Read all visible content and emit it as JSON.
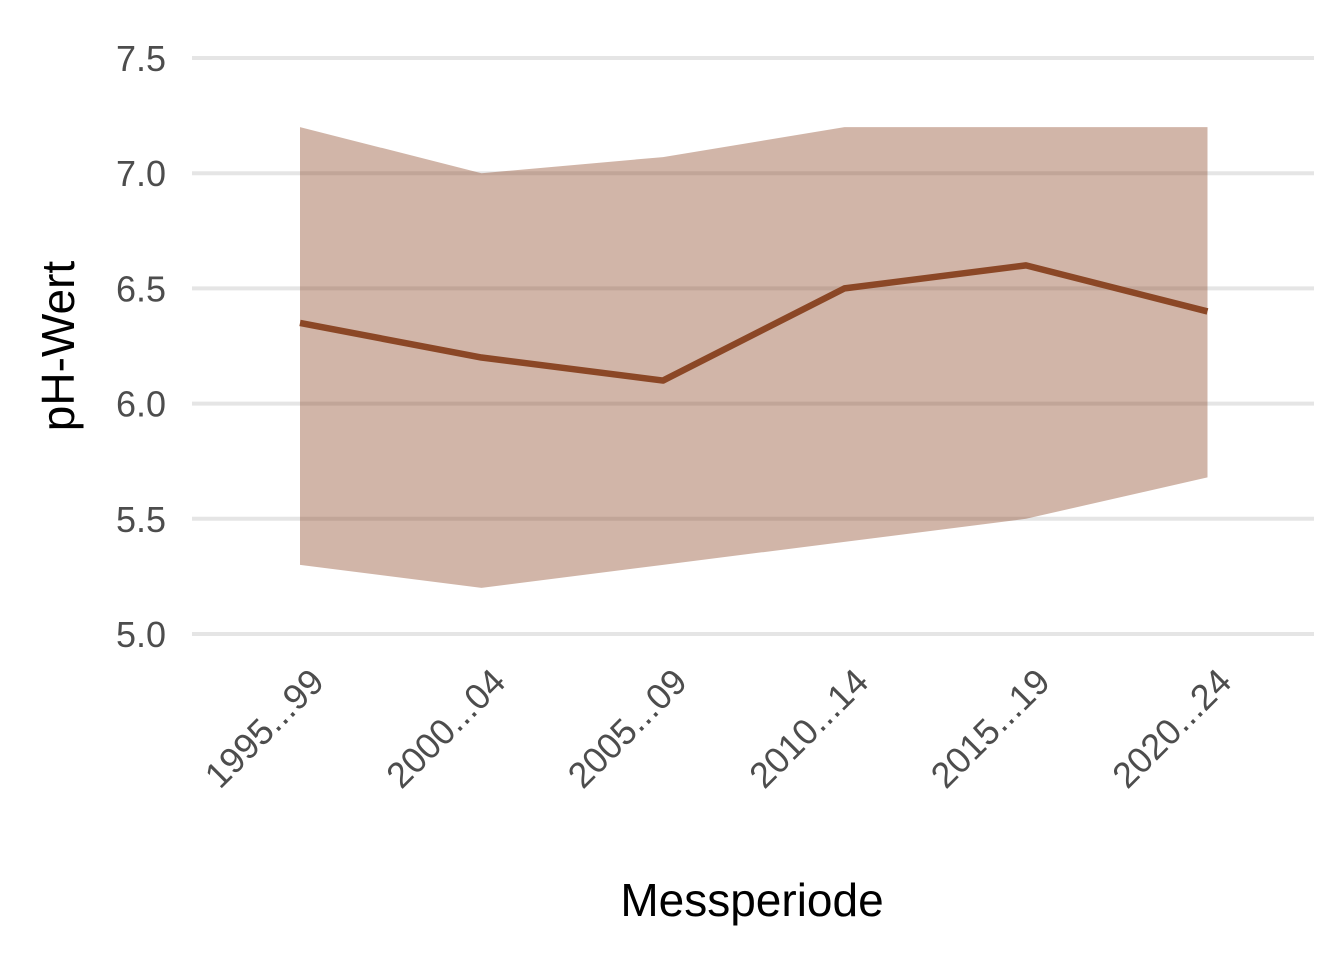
{
  "chart_data": {
    "type": "line",
    "title": "",
    "xlabel": "Messperiode",
    "ylabel": "pH-Wert",
    "categories": [
      "1995...99",
      "2000...04",
      "2005...09",
      "2010...14",
      "2015...19",
      "2020...24"
    ],
    "series": [
      {
        "values": [
          6.35,
          6.2,
          6.1,
          6.5,
          6.6,
          6.4
        ],
        "color": "#8b4726"
      }
    ],
    "range_band": {
      "lower": [
        5.3,
        5.2,
        5.3,
        5.4,
        5.5,
        5.68
      ],
      "upper": [
        7.2,
        7.0,
        7.07,
        7.2,
        7.2,
        7.2
      ],
      "color": "#8b4726",
      "opacity": 0.4
    },
    "ylim": [
      5.0,
      7.5
    ],
    "yticks": [
      5.0,
      5.5,
      6.0,
      6.5,
      7.0,
      7.5
    ],
    "ytick_labels": [
      "5.0",
      "5.5",
      "6.0",
      "6.5",
      "7.0",
      "7.5"
    ],
    "grid": true,
    "legend": "none"
  }
}
